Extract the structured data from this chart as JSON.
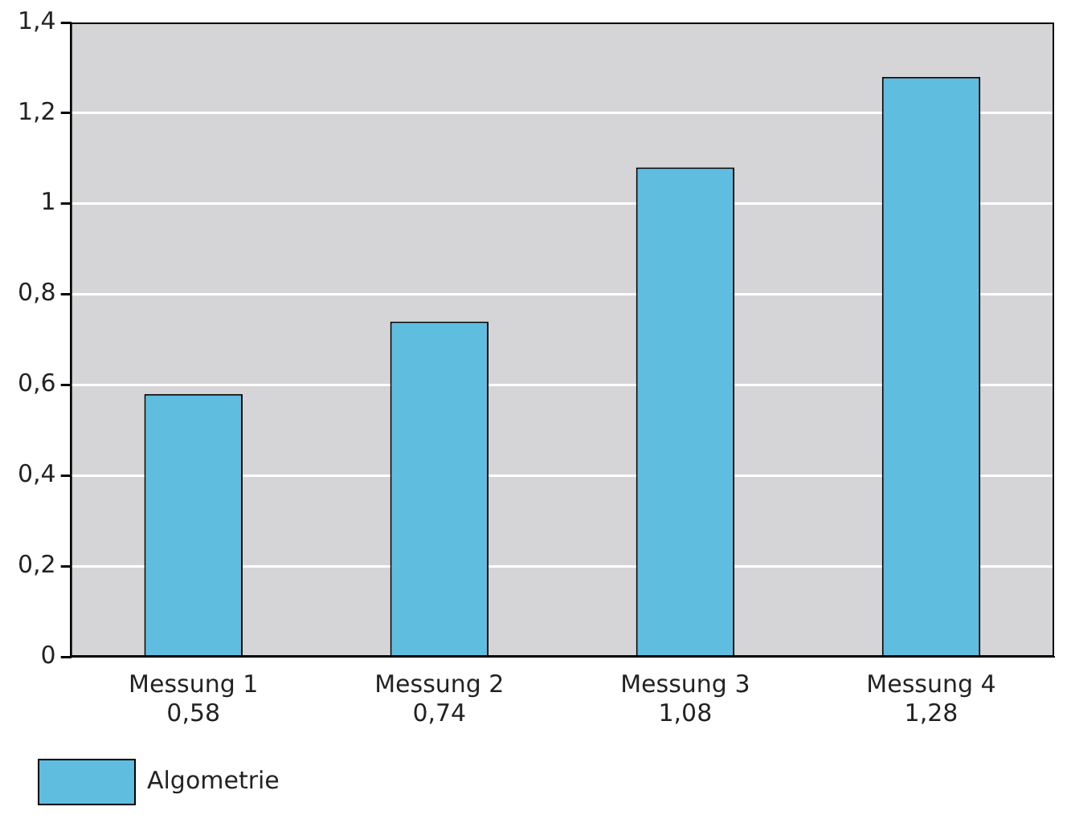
{
  "chart_data": {
    "type": "bar",
    "categories": [
      "Messung 1",
      "Messung 2",
      "Messung 3",
      "Messung 4"
    ],
    "series": [
      {
        "name": "Algometrie",
        "color": "#5fbde0",
        "values": [
          0.58,
          0.74,
          1.08,
          1.28
        ],
        "value_labels": [
          "0,58",
          "0,74",
          "1,08",
          "1,28"
        ]
      }
    ],
    "ylim": [
      0,
      1.4
    ],
    "yticks": [
      0,
      {
        "value": 0.2,
        "label": "0,2"
      },
      {
        "value": 0.4,
        "label": "0,4"
      },
      {
        "value": 0.6,
        "label": "0,6"
      },
      {
        "value": 0.8,
        "label": "0,8"
      },
      1,
      {
        "value": 1.2,
        "label": "1,2"
      },
      {
        "value": 1.4,
        "label": "1,4"
      }
    ],
    "grid": "y",
    "legend": "bottom left"
  }
}
